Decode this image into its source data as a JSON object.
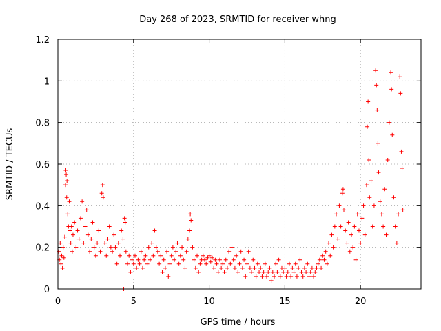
{
  "chart_data": {
    "type": "scatter",
    "title": "Day 268 of 2023, SRMTID for receiver whng",
    "xlabel": "GPS time / hours",
    "ylabel": "SRMTID / TECUs",
    "xlim": [
      0,
      24
    ],
    "ylim": [
      0,
      1.2
    ],
    "xticks": [
      0,
      5,
      10,
      15,
      20
    ],
    "yticks": [
      0,
      0.2,
      0.4,
      0.6,
      0.8,
      1,
      1.2
    ],
    "ytick_labels": [
      "0",
      "0.2",
      "0.4",
      "0.6",
      "0.8",
      "1",
      "1.2"
    ],
    "grid": true,
    "marker": "+",
    "color": "#ff0000",
    "series": [
      {
        "name": "SRMTID",
        "points": [
          [
            0.05,
            0.18
          ],
          [
            0.1,
            0.14
          ],
          [
            0.15,
            0.22
          ],
          [
            0.2,
            0.12
          ],
          [
            0.25,
            0.16
          ],
          [
            0.3,
            0.1
          ],
          [
            0.35,
            0.2
          ],
          [
            0.4,
            0.15
          ],
          [
            0.45,
            0.25
          ],
          [
            0.5,
            0.5
          ],
          [
            0.52,
            0.57
          ],
          [
            0.55,
            0.55
          ],
          [
            0.58,
            0.44
          ],
          [
            0.6,
            0.52
          ],
          [
            0.65,
            0.36
          ],
          [
            0.7,
            0.3
          ],
          [
            0.75,
            0.42
          ],
          [
            0.8,
            0.28
          ],
          [
            0.85,
            0.22
          ],
          [
            0.9,
            0.3
          ],
          [
            0.95,
            0.18
          ],
          [
            1.0,
            0.26
          ],
          [
            1.1,
            0.32
          ],
          [
            1.2,
            0.2
          ],
          [
            1.3,
            0.28
          ],
          [
            1.4,
            0.24
          ],
          [
            1.5,
            0.34
          ],
          [
            1.6,
            0.42
          ],
          [
            1.7,
            0.22
          ],
          [
            1.8,
            0.3
          ],
          [
            1.9,
            0.38
          ],
          [
            2.0,
            0.26
          ],
          [
            2.1,
            0.18
          ],
          [
            2.2,
            0.24
          ],
          [
            2.3,
            0.32
          ],
          [
            2.4,
            0.2
          ],
          [
            2.5,
            0.16
          ],
          [
            2.6,
            0.22
          ],
          [
            2.7,
            0.28
          ],
          [
            2.8,
            0.18
          ],
          [
            2.9,
            0.46
          ],
          [
            2.95,
            0.5
          ],
          [
            3.0,
            0.44
          ],
          [
            3.1,
            0.22
          ],
          [
            3.2,
            0.16
          ],
          [
            3.3,
            0.24
          ],
          [
            3.4,
            0.3
          ],
          [
            3.5,
            0.2
          ],
          [
            3.6,
            0.18
          ],
          [
            3.7,
            0.26
          ],
          [
            3.8,
            0.2
          ],
          [
            3.9,
            0.12
          ],
          [
            4.0,
            0.22
          ],
          [
            4.1,
            0.16
          ],
          [
            4.2,
            0.28
          ],
          [
            4.3,
            0.24
          ],
          [
            4.35,
            0.0
          ],
          [
            4.4,
            0.34
          ],
          [
            4.45,
            0.32
          ],
          [
            4.5,
            0.18
          ],
          [
            4.6,
            0.12
          ],
          [
            4.7,
            0.16
          ],
          [
            4.8,
            0.08
          ],
          [
            4.9,
            0.14
          ],
          [
            5.0,
            0.12
          ],
          [
            5.1,
            0.16
          ],
          [
            5.2,
            0.1
          ],
          [
            5.3,
            0.14
          ],
          [
            5.4,
            0.12
          ],
          [
            5.5,
            0.18
          ],
          [
            5.6,
            0.1
          ],
          [
            5.7,
            0.14
          ],
          [
            5.8,
            0.16
          ],
          [
            5.9,
            0.12
          ],
          [
            6.0,
            0.2
          ],
          [
            6.1,
            0.14
          ],
          [
            6.2,
            0.22
          ],
          [
            6.3,
            0.16
          ],
          [
            6.4,
            0.28
          ],
          [
            6.5,
            0.2
          ],
          [
            6.6,
            0.18
          ],
          [
            6.7,
            0.12
          ],
          [
            6.8,
            0.16
          ],
          [
            6.9,
            0.08
          ],
          [
            7.0,
            0.14
          ],
          [
            7.1,
            0.1
          ],
          [
            7.2,
            0.18
          ],
          [
            7.3,
            0.06
          ],
          [
            7.4,
            0.12
          ],
          [
            7.5,
            0.16
          ],
          [
            7.6,
            0.2
          ],
          [
            7.7,
            0.14
          ],
          [
            7.8,
            0.18
          ],
          [
            7.9,
            0.22
          ],
          [
            8.0,
            0.12
          ],
          [
            8.1,
            0.16
          ],
          [
            8.2,
            0.2
          ],
          [
            8.3,
            0.14
          ],
          [
            8.4,
            0.1
          ],
          [
            8.5,
            0.18
          ],
          [
            8.6,
            0.24
          ],
          [
            8.7,
            0.28
          ],
          [
            8.75,
            0.36
          ],
          [
            8.8,
            0.33
          ],
          [
            8.9,
            0.2
          ],
          [
            9.0,
            0.14
          ],
          [
            9.1,
            0.1
          ],
          [
            9.2,
            0.16
          ],
          [
            9.3,
            0.08
          ],
          [
            9.4,
            0.12
          ],
          [
            9.5,
            0.14
          ],
          [
            9.6,
            0.16
          ],
          [
            9.7,
            0.14
          ],
          [
            9.8,
            0.12
          ],
          [
            9.9,
            0.15
          ],
          [
            10.0,
            0.16
          ],
          [
            10.1,
            0.13
          ],
          [
            10.2,
            0.15
          ],
          [
            10.3,
            0.1
          ],
          [
            10.4,
            0.14
          ],
          [
            10.5,
            0.12
          ],
          [
            10.6,
            0.08
          ],
          [
            10.7,
            0.14
          ],
          [
            10.8,
            0.1
          ],
          [
            10.9,
            0.12
          ],
          [
            11.0,
            0.08
          ],
          [
            11.1,
            0.14
          ],
          [
            11.2,
            0.1
          ],
          [
            11.3,
            0.18
          ],
          [
            11.4,
            0.12
          ],
          [
            11.5,
            0.2
          ],
          [
            11.6,
            0.14
          ],
          [
            11.7,
            0.1
          ],
          [
            11.8,
            0.16
          ],
          [
            11.9,
            0.08
          ],
          [
            12.0,
            0.12
          ],
          [
            12.1,
            0.18
          ],
          [
            12.2,
            0.1
          ],
          [
            12.3,
            0.14
          ],
          [
            12.4,
            0.06
          ],
          [
            12.5,
            0.12
          ],
          [
            12.6,
            0.18
          ],
          [
            12.7,
            0.1
          ],
          [
            12.8,
            0.08
          ],
          [
            12.9,
            0.14
          ],
          [
            13.0,
            0.1
          ],
          [
            13.1,
            0.06
          ],
          [
            13.2,
            0.12
          ],
          [
            13.3,
            0.08
          ],
          [
            13.4,
            0.1
          ],
          [
            13.5,
            0.06
          ],
          [
            13.6,
            0.08
          ],
          [
            13.7,
            0.12
          ],
          [
            13.8,
            0.06
          ],
          [
            13.9,
            0.08
          ],
          [
            14.0,
            0.1
          ],
          [
            14.1,
            0.04
          ],
          [
            14.2,
            0.08
          ],
          [
            14.3,
            0.06
          ],
          [
            14.4,
            0.12
          ],
          [
            14.5,
            0.08
          ],
          [
            14.6,
            0.14
          ],
          [
            14.7,
            0.06
          ],
          [
            14.8,
            0.1
          ],
          [
            14.9,
            0.08
          ],
          [
            15.0,
            0.1
          ],
          [
            15.1,
            0.06
          ],
          [
            15.2,
            0.08
          ],
          [
            15.3,
            0.12
          ],
          [
            15.4,
            0.06
          ],
          [
            15.5,
            0.1
          ],
          [
            15.6,
            0.08
          ],
          [
            15.7,
            0.12
          ],
          [
            15.8,
            0.06
          ],
          [
            15.9,
            0.1
          ],
          [
            16.0,
            0.14
          ],
          [
            16.1,
            0.08
          ],
          [
            16.2,
            0.06
          ],
          [
            16.3,
            0.1
          ],
          [
            16.4,
            0.08
          ],
          [
            16.5,
            0.12
          ],
          [
            16.6,
            0.06
          ],
          [
            16.7,
            0.08
          ],
          [
            16.8,
            0.1
          ],
          [
            16.9,
            0.06
          ],
          [
            17.0,
            0.08
          ],
          [
            17.1,
            0.1
          ],
          [
            17.2,
            0.12
          ],
          [
            17.3,
            0.14
          ],
          [
            17.4,
            0.1
          ],
          [
            17.5,
            0.16
          ],
          [
            17.6,
            0.14
          ],
          [
            17.7,
            0.18
          ],
          [
            17.8,
            0.12
          ],
          [
            17.9,
            0.22
          ],
          [
            18.0,
            0.16
          ],
          [
            18.1,
            0.26
          ],
          [
            18.2,
            0.2
          ],
          [
            18.3,
            0.3
          ],
          [
            18.4,
            0.36
          ],
          [
            18.5,
            0.24
          ],
          [
            18.6,
            0.4
          ],
          [
            18.7,
            0.3
          ],
          [
            18.8,
            0.46
          ],
          [
            18.85,
            0.48
          ],
          [
            18.9,
            0.38
          ],
          [
            19.0,
            0.28
          ],
          [
            19.1,
            0.22
          ],
          [
            19.2,
            0.32
          ],
          [
            19.3,
            0.18
          ],
          [
            19.4,
            0.26
          ],
          [
            19.5,
            0.2
          ],
          [
            19.6,
            0.3
          ],
          [
            19.7,
            0.14
          ],
          [
            19.8,
            0.36
          ],
          [
            19.9,
            0.28
          ],
          [
            20.0,
            0.22
          ],
          [
            20.1,
            0.34
          ],
          [
            20.2,
            0.4
          ],
          [
            20.3,
            0.26
          ],
          [
            20.4,
            0.5
          ],
          [
            20.45,
            0.78
          ],
          [
            20.5,
            0.9
          ],
          [
            20.55,
            0.62
          ],
          [
            20.6,
            0.44
          ],
          [
            20.7,
            0.52
          ],
          [
            20.8,
            0.3
          ],
          [
            20.9,
            0.4
          ],
          [
            21.0,
            1.05
          ],
          [
            21.05,
            0.98
          ],
          [
            21.1,
            0.86
          ],
          [
            21.15,
            0.7
          ],
          [
            21.2,
            0.56
          ],
          [
            21.3,
            0.42
          ],
          [
            21.4,
            0.36
          ],
          [
            21.5,
            0.3
          ],
          [
            21.6,
            0.48
          ],
          [
            21.7,
            0.26
          ],
          [
            21.8,
            0.62
          ],
          [
            21.9,
            0.8
          ],
          [
            22.0,
            1.04
          ],
          [
            22.05,
            0.96
          ],
          [
            22.1,
            0.74
          ],
          [
            22.2,
            0.44
          ],
          [
            22.3,
            0.3
          ],
          [
            22.4,
            0.22
          ],
          [
            22.5,
            0.36
          ],
          [
            22.6,
            1.02
          ],
          [
            22.65,
            0.94
          ],
          [
            22.7,
            0.66
          ],
          [
            22.75,
            0.58
          ],
          [
            22.8,
            0.38
          ]
        ]
      }
    ]
  }
}
